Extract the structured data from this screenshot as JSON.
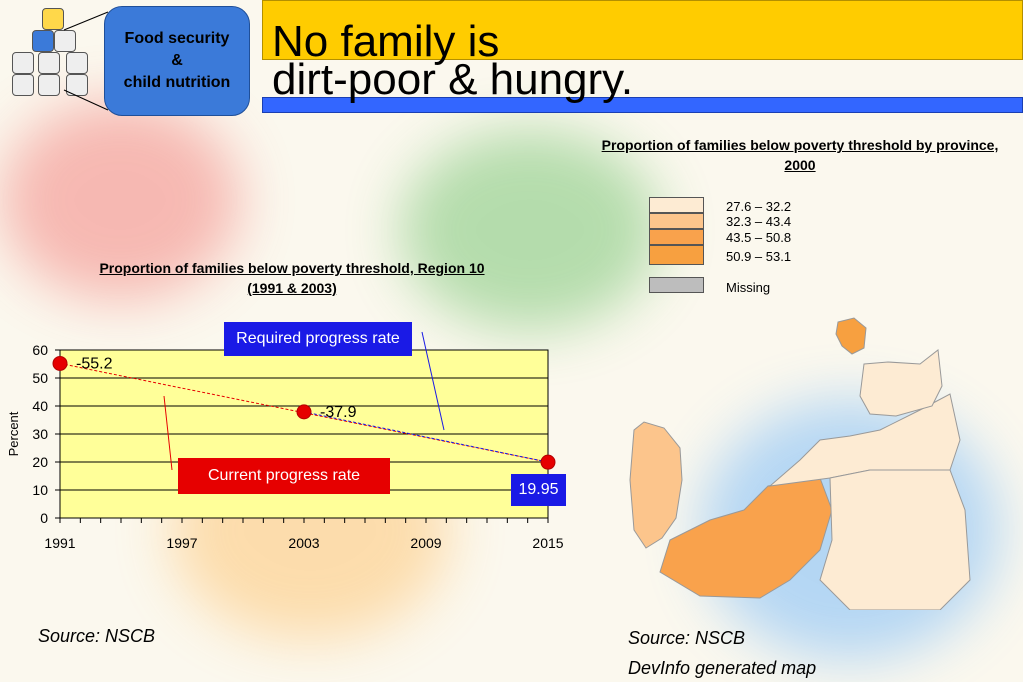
{
  "badge": {
    "line1": "Food security",
    "line2": "&",
    "line3": "child nutrition"
  },
  "title": {
    "line1": "No family is",
    "line2": "dirt-poor & hungry."
  },
  "map": {
    "title": "Proportion of families below poverty threshold by province, 2000",
    "legend": [
      {
        "label": "27.6 – 32.2",
        "color": "#fdebd3"
      },
      {
        "label": "32.3 – 43.4",
        "color": "#fcc58c"
      },
      {
        "label": "43.5 – 50.8",
        "color": "#f9a24c"
      },
      {
        "label": "50.9 – 53.1",
        "color": "#f7a040"
      },
      {
        "label": "Missing",
        "color": "#bdbdbd"
      }
    ],
    "source": "Source: NSCB",
    "note": "DevInfo generated map"
  },
  "chart": {
    "title": "Proportion of families below poverty threshold, Region 10  (1991 & 2003)",
    "required_label": "Required progress rate",
    "current_label": "Current progress rate",
    "target_label": "19.95",
    "source": "Source: NSCB"
  },
  "chart_data": {
    "type": "line",
    "title": "Proportion of families below poverty threshold, Region 10  (1991 & 2003)",
    "ylabel": "Percent",
    "xlabel": "",
    "xlim": [
      1991,
      2015
    ],
    "ylim": [
      0,
      60
    ],
    "xticks": [
      1991,
      1997,
      2003,
      2009,
      2015
    ],
    "yticks": [
      0,
      10,
      20,
      30,
      40,
      50,
      60
    ],
    "points": [
      {
        "x": 1991,
        "y": 55.2,
        "label": "55.2"
      },
      {
        "x": 2003,
        "y": 37.9,
        "label": "37.9"
      },
      {
        "x": 2015,
        "y": 19.95,
        "label": ""
      }
    ],
    "series": [
      {
        "values": [
          [
            1991,
            55.2
          ],
          [
            2015,
            19.95
          ]
        ],
        "color": "#e60000"
      },
      {
        "values": [
          [
            2003,
            37.9
          ],
          [
            2015,
            19.95
          ]
        ],
        "color": "#1a1ae6"
      }
    ],
    "plot_bg": "#ffff99",
    "grid": true
  }
}
